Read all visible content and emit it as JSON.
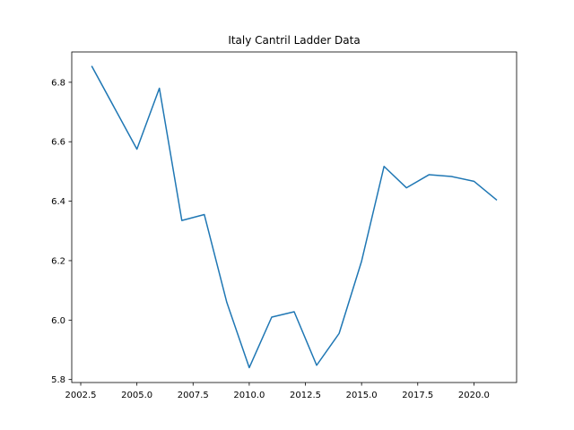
{
  "chart_data": {
    "type": "line",
    "title": "Italy Cantril Ladder Data",
    "xlabel": "",
    "ylabel": "",
    "xlim": [
      2002.1,
      2021.9
    ],
    "ylim": [
      5.79,
      6.902
    ],
    "xticks": [
      2002.5,
      2005.0,
      2007.5,
      2010.0,
      2012.5,
      2015.0,
      2017.5,
      2020.0
    ],
    "xtick_labels": [
      "2002.5",
      "2005.0",
      "2007.5",
      "2010.0",
      "2012.5",
      "2015.0",
      "2017.5",
      "2020.0"
    ],
    "yticks": [
      5.8,
      6.0,
      6.2,
      6.4,
      6.6,
      6.8
    ],
    "ytick_labels": [
      "5.8",
      "6.0",
      "6.2",
      "6.4",
      "6.6",
      "6.8"
    ],
    "grid": false,
    "legend": "none",
    "series": [
      {
        "color": "#1f77b4",
        "x": [
          2003,
          2005,
          2006,
          2007,
          2008,
          2009,
          2010,
          2011,
          2012,
          2013,
          2014,
          2015,
          2016,
          2017,
          2018,
          2019,
          2020,
          2021
        ],
        "y": [
          6.853,
          6.575,
          6.78,
          6.335,
          6.355,
          6.06,
          5.84,
          6.01,
          6.028,
          5.848,
          5.955,
          6.198,
          6.517,
          6.445,
          6.489,
          6.483,
          6.467,
          6.405
        ]
      }
    ]
  }
}
